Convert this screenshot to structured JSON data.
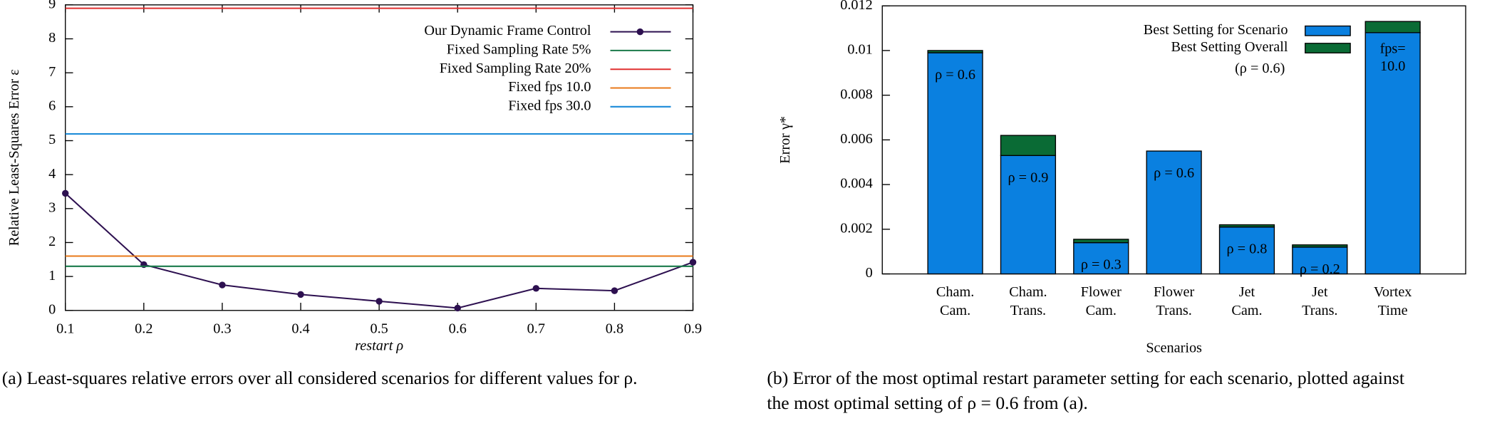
{
  "chart_data": [
    {
      "type": "line",
      "x": [
        0.1,
        0.2,
        0.3,
        0.4,
        0.5,
        0.6,
        0.7,
        0.8,
        0.9
      ],
      "series": [
        {
          "name": "Our Dynamic Frame Control",
          "color": "#2d1050",
          "values": [
            3.45,
            1.35,
            0.75,
            0.47,
            0.27,
            0.07,
            0.65,
            0.58,
            1.42
          ]
        },
        {
          "name": "Fixed Sampling Rate 5%",
          "color": "#1a7a4a",
          "value": 1.3
        },
        {
          "name": "Fixed Sampling Rate 20%",
          "color": "#e03030",
          "value": 8.9
        },
        {
          "name": "Fixed fps 10.0",
          "color": "#e87a1a",
          "value": 1.6
        },
        {
          "name": "Fixed fps 30.0",
          "color": "#1a8ad8",
          "value": 5.2
        }
      ],
      "xlim": [
        0.1,
        0.9
      ],
      "xticks": [
        0.1,
        0.2,
        0.3,
        0.4,
        0.5,
        0.6,
        0.7,
        0.8,
        0.9
      ],
      "ylim": [
        0,
        9
      ],
      "yticks": [
        0,
        1,
        2,
        3,
        4,
        5,
        6,
        7,
        8,
        9
      ],
      "x_label": "restart ρ",
      "y_label": "Relative Least-Squares Error ε",
      "caption": [
        "(a) Least-squares relative errors over all considered scenarios for different values for ρ."
      ]
    },
    {
      "type": "stacked_bar",
      "categories": [
        [
          "Cham.",
          "Cam."
        ],
        [
          "Cham.",
          "Trans."
        ],
        [
          "Flower",
          "Cam."
        ],
        [
          "Flower",
          "Trans."
        ],
        [
          "Jet",
          "Cam."
        ],
        [
          "Jet",
          "Trans."
        ],
        [
          "Vortex",
          "Time"
        ]
      ],
      "series": [
        {
          "name": "Best Setting for Scenario",
          "color": "#0a80e0",
          "values": [
            0.0099,
            0.0053,
            0.0014,
            0.0055,
            0.0021,
            0.0012,
            0.0108
          ]
        },
        {
          "name": "Best Setting Overall",
          "color": "#0a6b35",
          "values": [
            0.0001,
            0.0009,
            0.00015,
            0,
            0.0001,
            0.0001,
            0.0005
          ]
        }
      ],
      "bar_labels": [
        [
          "ρ = 0.6"
        ],
        [
          "ρ = 0.9"
        ],
        [
          "ρ = 0.3"
        ],
        [
          "ρ = 0.6"
        ],
        [
          "ρ = 0.8"
        ],
        [
          "ρ = 0.2"
        ],
        [
          "fps=",
          "10.0"
        ]
      ],
      "annotation": "(ρ = 0.6)",
      "ylim": [
        0,
        0.012
      ],
      "yticks": [
        0,
        0.002,
        0.004,
        0.006,
        0.008,
        0.01,
        0.012
      ],
      "x_label": "Scenarios",
      "y_label": "Error γ*",
      "caption": [
        "(b) Error of the most optimal restart parameter setting for each scenario, plotted against",
        "the most optimal setting of ρ = 0.6 from (a)."
      ]
    }
  ]
}
